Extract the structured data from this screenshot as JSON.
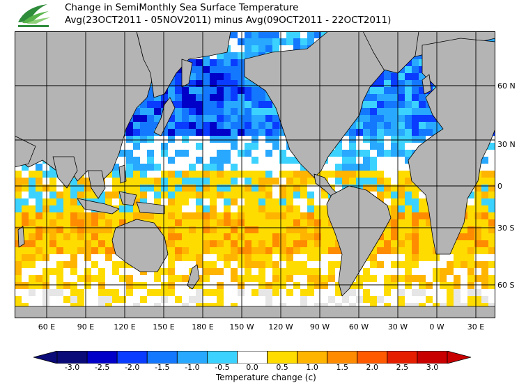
{
  "header": {
    "title_line1": "Change in SemiMonthly Sea Surface Temperature",
    "title_line2": "Avg(23OCT2011 - 05NOV2011) minus Avg(09OCT2011 - 22OCT2011)"
  },
  "map": {
    "longitude_labels": [
      "60 E",
      "90 E",
      "120 E",
      "150 E",
      "180 E",
      "150 W",
      "120 W",
      "90 W",
      "60 W",
      "30 W",
      "0 W",
      "30 E"
    ],
    "latitude_labels": [
      "60 N",
      "30 N",
      "0",
      "30 S",
      "60 S"
    ],
    "colors": {
      "land": "#b4b4b4",
      "ice": "#e6e6e6",
      "grid": "#000000"
    },
    "features": [
      "logo-icon"
    ]
  },
  "colorbar": {
    "labels": [
      "-3.0",
      "-2.5",
      "-2.0",
      "-1.5",
      "-1.0",
      "-0.5",
      "0.0",
      "0.5",
      "1.0",
      "1.5",
      "2.0",
      "2.5",
      "3.0"
    ],
    "colors": [
      "#0a0a78",
      "#0000c8",
      "#0a3cff",
      "#1478ff",
      "#28a8ff",
      "#3cd2ff",
      "#ffffff",
      "#ffdc00",
      "#ffb400",
      "#ff8c00",
      "#ff5a00",
      "#e61e00",
      "#c80000"
    ],
    "title": "Temperature change  (c)"
  }
}
